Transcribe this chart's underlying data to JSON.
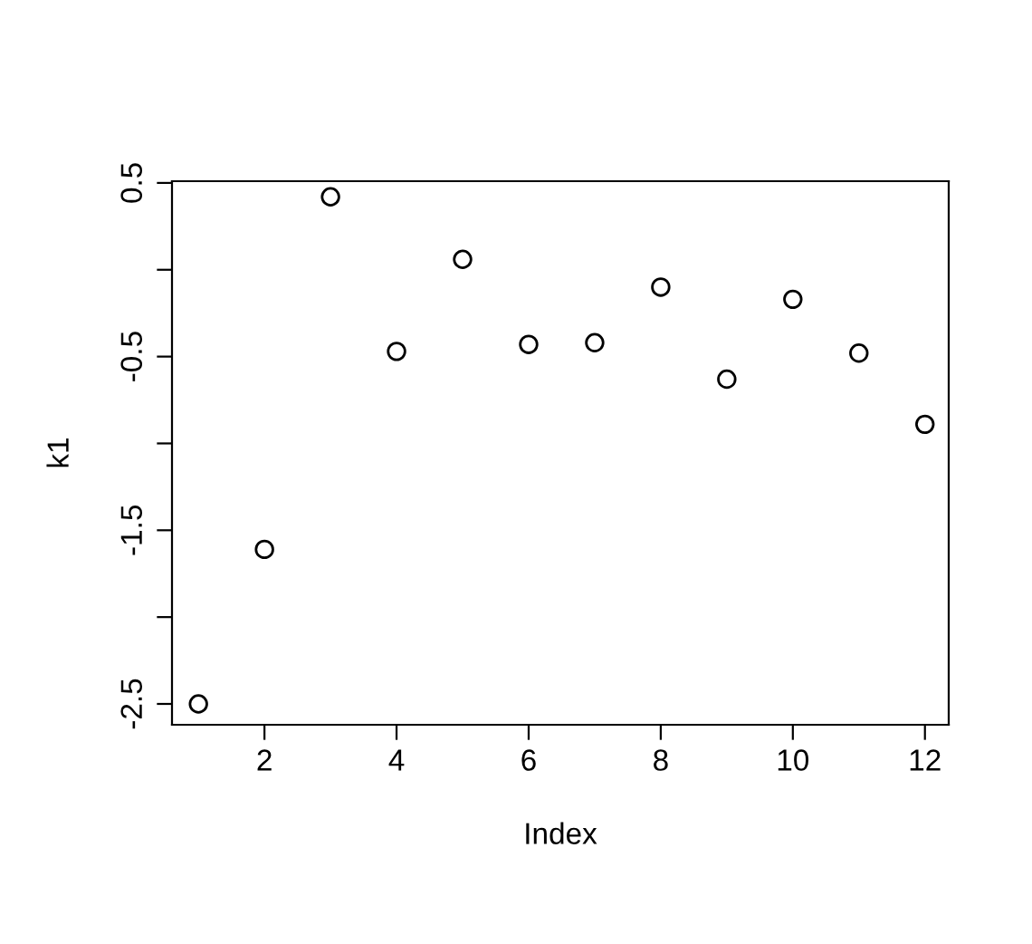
{
  "chart_data": {
    "type": "scatter",
    "xlabel": "Index",
    "ylabel": "k1",
    "x": [
      1,
      2,
      3,
      4,
      5,
      6,
      7,
      8,
      9,
      10,
      11,
      12
    ],
    "series": [
      {
        "color": "#000000",
        "values": [
          -2.5,
          -1.61,
          0.42,
          -0.47,
          0.06,
          -0.43,
          -0.42,
          -0.1,
          -0.63,
          -0.17,
          -0.48,
          -0.89
        ]
      }
    ],
    "marker": "circle",
    "grid": false,
    "xlim": [
      0.6,
      12.36
    ],
    "xticks": [
      2,
      4,
      6,
      8,
      10,
      12
    ],
    "ylim": [
      -2.62,
      0.51
    ],
    "yticks": [
      -2.5,
      {
        "value": -2,
        "label": null
      },
      -1.5,
      {
        "value": -1,
        "label": null
      },
      -0.5,
      {
        "value": 0,
        "label": null
      },
      0.5
    ]
  }
}
